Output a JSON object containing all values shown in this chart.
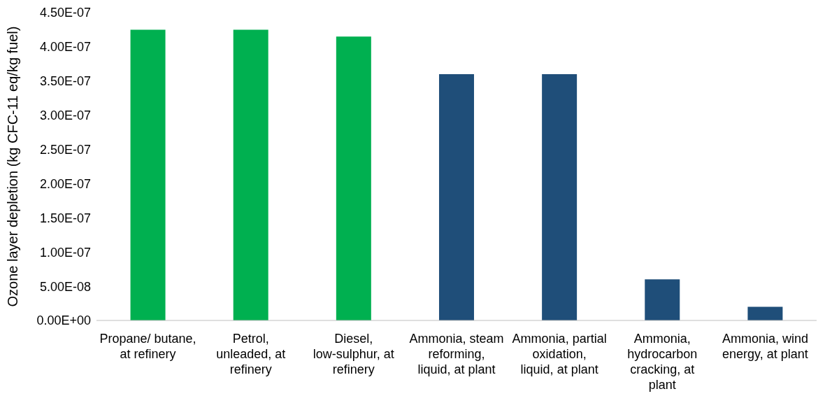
{
  "chart_data": {
    "type": "bar",
    "ylabel": "Ozone layer depletion (kg CFC-11 eq/kg fuel)",
    "categories": [
      "Propane/ butane, at refinery",
      "Petrol, unleaded, at refinery",
      "Diesel, low-sulphur, at refinery",
      "Ammonia, steam reforming, liquid, at plant",
      "Ammonia, partial oxidation, liquid, at plant",
      "Ammonia, hydrocarbon cracking, at plant",
      "Ammonia, wind energy, at plant"
    ],
    "values": [
      4.25e-07,
      4.25e-07,
      4.15e-07,
      3.6e-07,
      3.6e-07,
      6e-08,
      2e-08
    ],
    "colors": [
      "#00b050",
      "#00b050",
      "#00b050",
      "#1f4e79",
      "#1f4e79",
      "#1f4e79",
      "#1f4e79"
    ],
    "ylim": [
      0,
      4.5e-07
    ],
    "yticks": [
      {
        "value": 0,
        "label": "0.00E+00"
      },
      {
        "value": 5e-08,
        "label": "5.00E-08"
      },
      {
        "value": 1e-07,
        "label": "1.00E-07"
      },
      {
        "value": 1.5e-07,
        "label": "1.50E-07"
      },
      {
        "value": 2e-07,
        "label": "2.00E-07"
      },
      {
        "value": 2.5e-07,
        "label": "2.50E-07"
      },
      {
        "value": 3e-07,
        "label": "3.00E-07"
      },
      {
        "value": 3.5e-07,
        "label": "3.50E-07"
      },
      {
        "value": 4e-07,
        "label": "4.00E-07"
      },
      {
        "value": 4.5e-07,
        "label": "4.50E-07"
      }
    ],
    "grid": false,
    "legend": false
  }
}
